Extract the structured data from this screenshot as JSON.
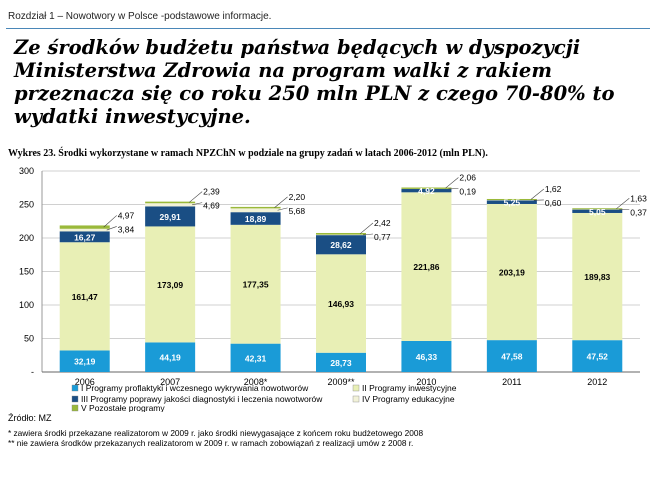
{
  "header": {
    "text": "Rozdział 1 – Nowotwory w Polsce -podstawowe informacje."
  },
  "headline": "Ze środków budżetu państwa będących w dyspozycji Ministerstwa Zdrowia na program walki z rakiem przeznacza się co roku 250 mln PLN z czego 70-80% to wydatki inwestycyjne.",
  "caption": "Wykres 23. Środki wykorzystane w ramach NPZChN w podziale na grupy zadań w latach 2006-2012 (mln PLN).",
  "colors": {
    "I": "#1a9bd7",
    "II": "#e8efb5",
    "III": "#1a4e84",
    "IV": "#f2f2d8",
    "V": "#9ab93a"
  },
  "chart_data": {
    "type": "bar",
    "stacked": true,
    "categories": [
      "2006",
      "2007",
      "2008*",
      "2009**",
      "2010",
      "2011",
      "2012"
    ],
    "ylim": [
      0,
      300
    ],
    "yticks": [
      "-",
      "50",
      "100",
      "150",
      "200",
      "250",
      "300"
    ],
    "grid": true,
    "legend_position": "bottom",
    "series": [
      {
        "name": "I Programy proflaktyki i wczesnego wykrywania nowotworów",
        "key": "I",
        "values": [
          32.19,
          44.19,
          42.31,
          28.73,
          46.33,
          47.58,
          47.52
        ],
        "labels": [
          "32,19",
          "44,19",
          "42,31",
          "28,73",
          "46,33",
          "47,58",
          "47,52"
        ]
      },
      {
        "name": "II Programy inwestycyjne",
        "key": "II",
        "values": [
          161.47,
          173.09,
          177.35,
          146.93,
          221.86,
          203.19,
          189.83
        ],
        "labels": [
          "161,47",
          "173,09",
          "177,35",
          "146,93",
          "221,86",
          "203,19",
          "189,83"
        ]
      },
      {
        "name": "III Programy poprawy jakości diagnostyki i leczenia nowotworów",
        "key": "III",
        "values": [
          16.27,
          29.91,
          18.89,
          28.62,
          4.92,
          5.25,
          5.05
        ],
        "labels": [
          "16,27",
          "29,91",
          "18,89",
          "28,62",
          "4,92",
          "5,25",
          "5,05"
        ]
      },
      {
        "name": "IV Programy edukacyjne",
        "key": "IV",
        "values": [
          3.84,
          4.69,
          5.68,
          0.77,
          0.19,
          0.6,
          0.37
        ],
        "labels": [
          "3,84",
          "4,69",
          "5,68",
          "0,77",
          "0,19",
          "0,60",
          "0,37"
        ]
      },
      {
        "name": "V Pozostałe programy",
        "key": "V",
        "values": [
          4.97,
          2.39,
          2.2,
          2.42,
          2.06,
          1.62,
          1.63
        ],
        "labels": [
          "4,97",
          "2,39",
          "2,20",
          "2,42",
          "2,06",
          "1,62",
          "1,63"
        ]
      }
    ]
  },
  "source": "Źródło: MZ",
  "notes": [
    "* zawiera środki przekazane realizatorom w 2009 r. jako środki niewygasające z końcem roku budżetowego 2008",
    "** nie zawiera środków przekazanych realizatorom w 2009 r. w ramach zobowiązań z realizacji umów z 2008 r."
  ]
}
